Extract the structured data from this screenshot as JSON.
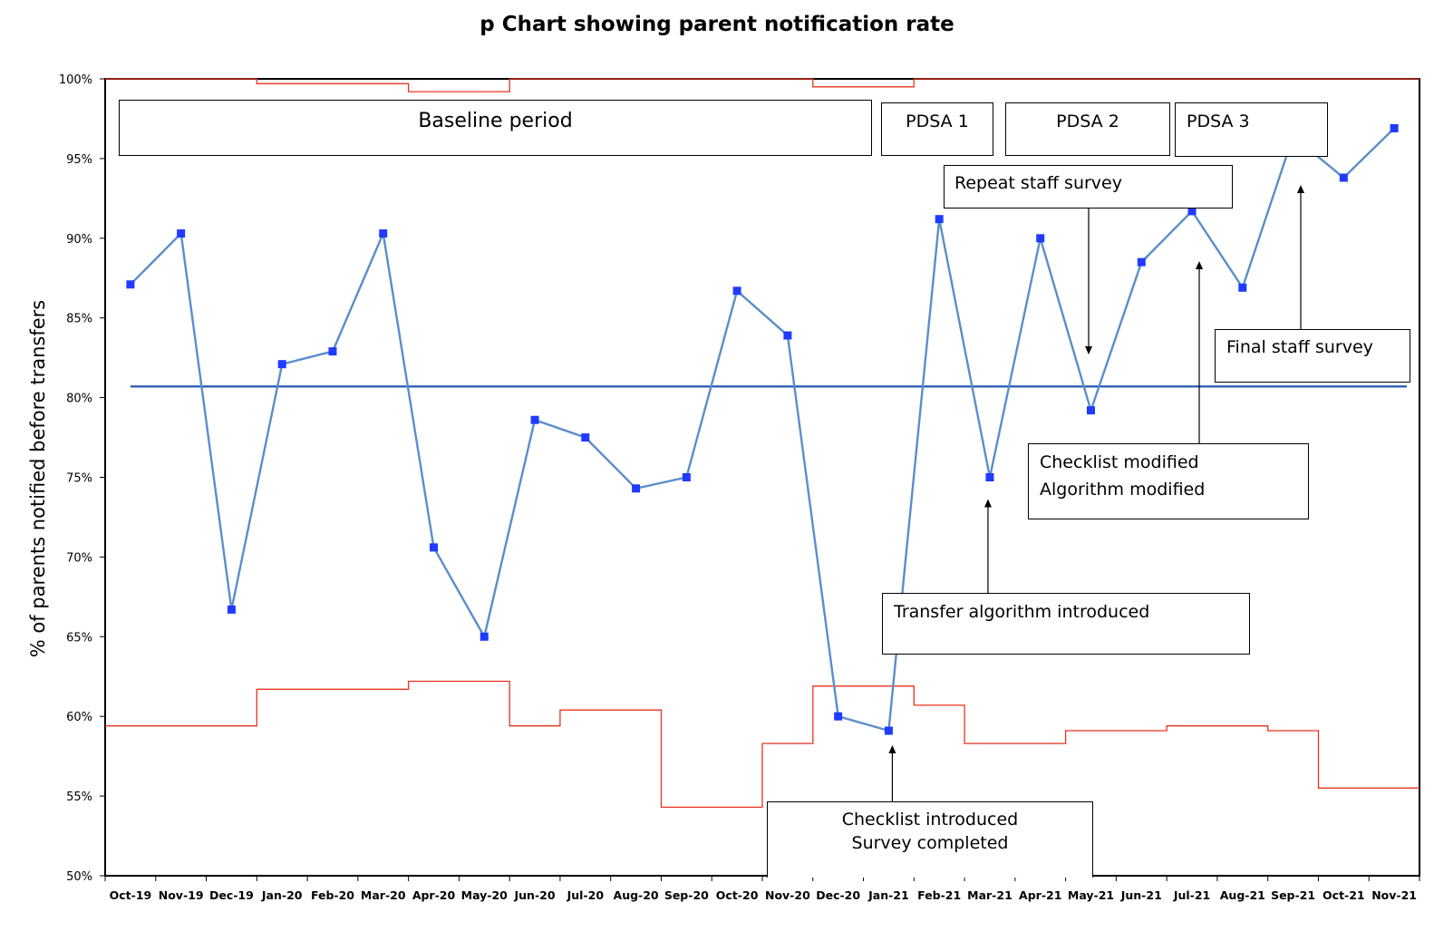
{
  "chart_data": {
    "type": "line",
    "title": "p Chart showing parent notification rate",
    "ylabel": "% of parents notified before transfers",
    "xlabel": "",
    "ylim": [
      50,
      100
    ],
    "yticks": [
      "50%",
      "55%",
      "60%",
      "65%",
      "70%",
      "75%",
      "80%",
      "85%",
      "90%",
      "95%",
      "100%"
    ],
    "categories": [
      "Oct-19",
      "Nov-19",
      "Dec-19",
      "Jan-20",
      "Feb-20",
      "Mar-20",
      "Apr-20",
      "May-20",
      "Jun-20",
      "Jul-20",
      "Aug-20",
      "Sep-20",
      "Oct-20",
      "Nov-20",
      "Dec-20",
      "Jan-21",
      "Feb-21",
      "Mar-21",
      "Apr-21",
      "May-21",
      "Jun-21",
      "Jul-21",
      "Aug-21",
      "Sep-21",
      "Oct-21",
      "Nov-21"
    ],
    "series": [
      {
        "name": "",
        "color": "#5b8ec9",
        "marker_color": "#1f3bff",
        "values": [
          87.1,
          90.3,
          66.7,
          82.1,
          82.9,
          90.3,
          70.6,
          65.0,
          78.6,
          77.5,
          74.3,
          75.0,
          86.7,
          83.9,
          60.0,
          59.1,
          91.2,
          75.0,
          90.0,
          79.2,
          88.5,
          91.7,
          86.9,
          96.4,
          93.8,
          96.9
        ]
      }
    ],
    "center_line": {
      "value": 80.7,
      "color": "#2e5fb4"
    },
    "control_limit_color": "#e8331f",
    "upper_control_limit": [
      100,
      100,
      100,
      99.7,
      99.7,
      99.7,
      99.2,
      99.2,
      100,
      100,
      100,
      100,
      100,
      100,
      99.5,
      99.5,
      100,
      100,
      100,
      100,
      100,
      100,
      100,
      100,
      100,
      100
    ],
    "lower_control_limit": [
      59.4,
      59.4,
      59.4,
      61.7,
      61.7,
      61.7,
      62.2,
      62.2,
      59.4,
      60.4,
      60.4,
      54.3,
      54.3,
      58.3,
      61.9,
      61.9,
      60.7,
      58.3,
      58.3,
      59.1,
      59.1,
      59.4,
      59.4,
      59.1,
      55.5,
      55.5
    ],
    "annotations": [
      {
        "key": "baseline",
        "lines": [
          "Baseline period"
        ]
      },
      {
        "key": "pdsa1",
        "lines": [
          "PDSA 1"
        ]
      },
      {
        "key": "pdsa2",
        "lines": [
          "PDSA 2"
        ]
      },
      {
        "key": "pdsa3",
        "lines": [
          "PDSA 3"
        ]
      },
      {
        "key": "repeat_survey",
        "lines": [
          "Repeat staff survey"
        ]
      },
      {
        "key": "final_survey",
        "lines": [
          "Final staff survey"
        ]
      },
      {
        "key": "checklist_mod",
        "lines": [
          "Checklist modified",
          "Algorithm modified"
        ]
      },
      {
        "key": "transfer_alg",
        "lines": [
          "Transfer algorithm introduced"
        ]
      },
      {
        "key": "checklist_intro",
        "lines": [
          "Checklist introduced",
          "Survey completed"
        ]
      }
    ]
  }
}
